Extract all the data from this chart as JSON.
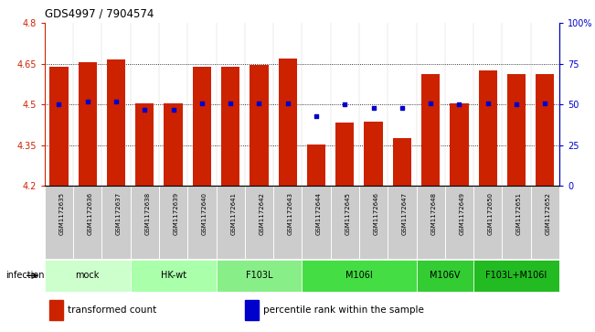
{
  "title": "GDS4997 / 7904574",
  "samples": [
    "GSM1172635",
    "GSM1172636",
    "GSM1172637",
    "GSM1172638",
    "GSM1172639",
    "GSM1172640",
    "GSM1172641",
    "GSM1172642",
    "GSM1172643",
    "GSM1172644",
    "GSM1172645",
    "GSM1172646",
    "GSM1172647",
    "GSM1172648",
    "GSM1172649",
    "GSM1172650",
    "GSM1172651",
    "GSM1172652"
  ],
  "bar_values": [
    4.638,
    4.655,
    4.666,
    4.506,
    4.505,
    4.638,
    4.638,
    4.645,
    4.67,
    4.352,
    4.435,
    4.438,
    4.378,
    4.614,
    4.503,
    4.625,
    4.614,
    4.614
  ],
  "percentile_values": [
    50,
    52,
    52,
    47,
    47,
    51,
    51,
    51,
    51,
    43,
    50,
    48,
    48,
    51,
    50,
    51,
    50,
    51
  ],
  "ylim_left": [
    4.2,
    4.8
  ],
  "ylim_right": [
    0,
    100
  ],
  "yticks_left": [
    4.2,
    4.35,
    4.5,
    4.65,
    4.8
  ],
  "ytick_labels_left": [
    "4.2",
    "4.35",
    "4.5",
    "4.65",
    "4.8"
  ],
  "yticks_right": [
    0,
    25,
    50,
    75,
    100
  ],
  "ytick_labels_right": [
    "0",
    "25",
    "50",
    "75",
    "100%"
  ],
  "hlines": [
    4.35,
    4.5,
    4.65
  ],
  "bar_color": "#cc2200",
  "dot_color": "#0000cc",
  "bar_width": 0.65,
  "groups": [
    {
      "label": "mock",
      "start": 0,
      "end": 3,
      "color": "#ccffcc"
    },
    {
      "label": "HK-wt",
      "start": 3,
      "end": 6,
      "color": "#aaffaa"
    },
    {
      "label": "F103L",
      "start": 6,
      "end": 9,
      "color": "#88ee88"
    },
    {
      "label": "M106I",
      "start": 9,
      "end": 13,
      "color": "#44dd44"
    },
    {
      "label": "M106V",
      "start": 13,
      "end": 15,
      "color": "#33cc33"
    },
    {
      "label": "F103L+M106I",
      "start": 15,
      "end": 18,
      "color": "#22bb22"
    }
  ],
  "infection_label": "infection",
  "legend_items": [
    {
      "color": "#cc2200",
      "label": "transformed count"
    },
    {
      "color": "#0000cc",
      "label": "percentile rank within the sample"
    }
  ],
  "tick_label_color_left": "#cc2200",
  "tick_label_color_right": "#0000cc",
  "sample_box_color": "#cccccc",
  "background_color": "#ffffff"
}
